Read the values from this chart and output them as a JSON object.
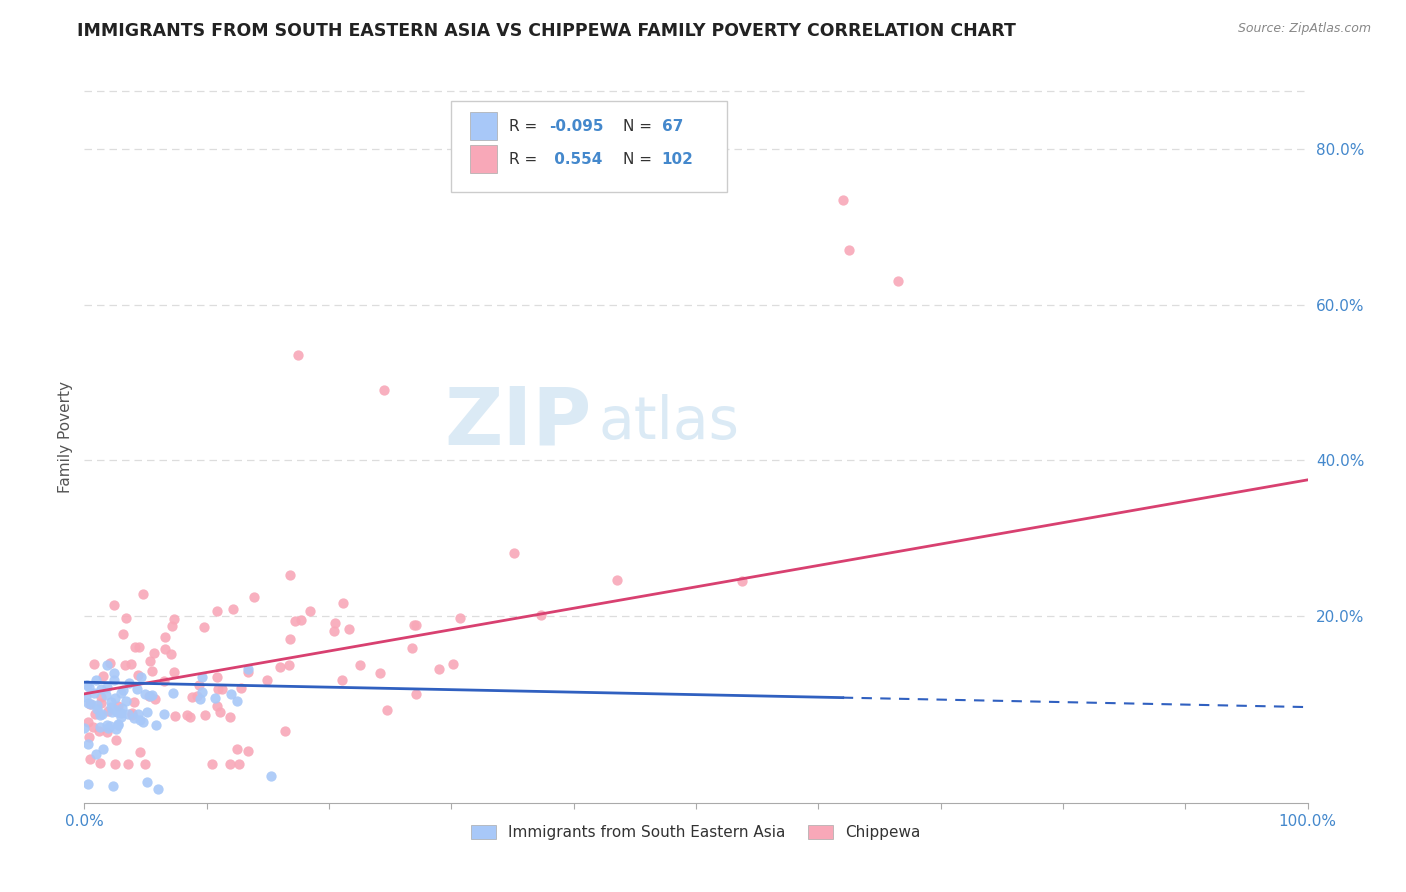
{
  "title": "IMMIGRANTS FROM SOUTH EASTERN ASIA VS CHIPPEWA FAMILY POVERTY CORRELATION CHART",
  "source": "Source: ZipAtlas.com",
  "ylabel": "Family Poverty",
  "ytick_vals": [
    0.2,
    0.4,
    0.6,
    0.8
  ],
  "ytick_labels": [
    "20.0%",
    "40.0%",
    "60.0%",
    "80.0%"
  ],
  "legend_blue_r": "-0.095",
  "legend_blue_n": "67",
  "legend_pink_r": "0.554",
  "legend_pink_n": "102",
  "legend_label_blue": "Immigrants from South Eastern Asia",
  "legend_label_pink": "Chippewa",
  "blue_color": "#a8c8f8",
  "pink_color": "#f8a8b8",
  "blue_line_color": "#3060c0",
  "pink_line_color": "#d84070",
  "blue_line_solid_end": 0.62,
  "blue_line_y_start": 0.115,
  "blue_line_y_end": 0.083,
  "pink_line_y_start": 0.1,
  "pink_line_y_end": 0.375,
  "xlim": [
    0,
    1.0
  ],
  "ylim": [
    -0.04,
    0.9
  ],
  "watermark_zip": "ZIP",
  "watermark_atlas": "atlas",
  "title_color": "#222222",
  "source_color": "#888888",
  "axis_label_color": "#4488cc",
  "grid_color": "#dddddd"
}
